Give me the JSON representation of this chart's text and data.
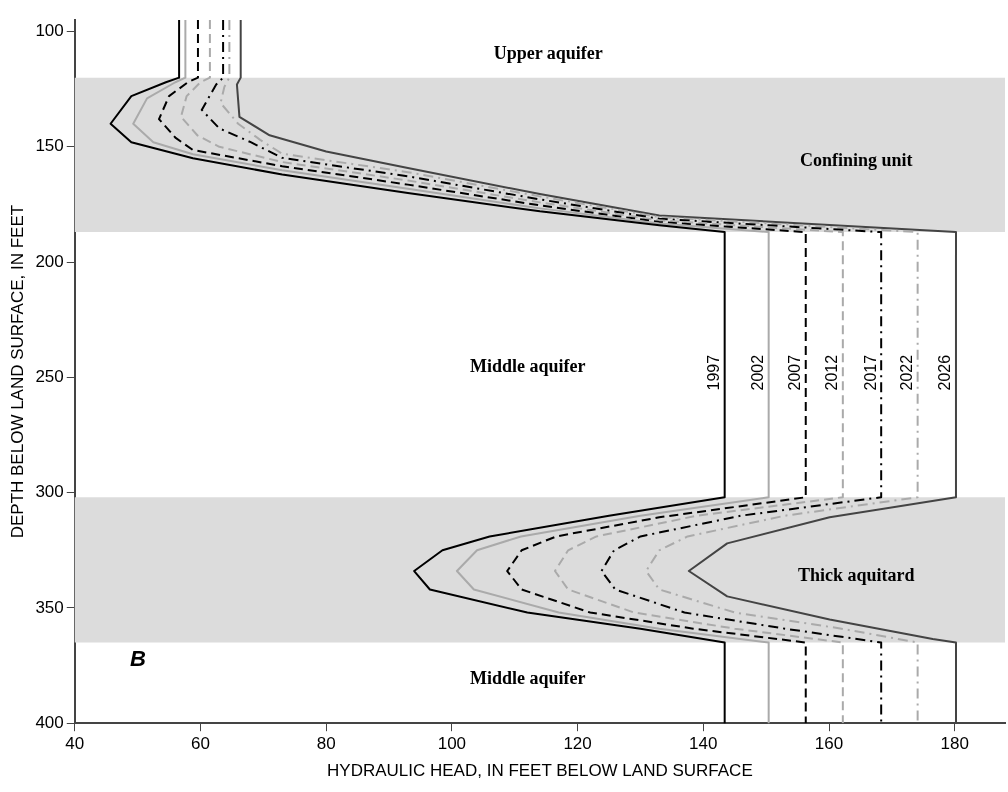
{
  "chart_data": {
    "type": "line",
    "xlabel": "HYDRAULIC HEAD, IN FEET BELOW LAND SURFACE",
    "ylabel": "DEPTH BELOW LAND SURFACE, IN FEET",
    "xlim": [
      40,
      188
    ],
    "xticks": [
      40,
      60,
      80,
      100,
      120,
      140,
      160,
      180
    ],
    "ylim": [
      400,
      95
    ],
    "yticks": [
      100,
      150,
      200,
      250,
      300,
      350,
      400
    ],
    "grid": false,
    "legend": false,
    "marker": "none",
    "bands": [
      {
        "axis": "y",
        "from": 120,
        "to": 187,
        "label": "Confining unit",
        "color": "#dcdcdc"
      },
      {
        "axis": "y",
        "from": 302,
        "to": 365,
        "label": "Thick aquitard",
        "color": "#dcdcdc"
      }
    ],
    "annotations": [
      "Upper aquifer",
      "Middle aquifer",
      "Middle aquifer",
      "B"
    ],
    "series": [
      {
        "name": "1997",
        "color": "#000000",
        "line_style": "solid",
        "x": [
          56.6,
          56.6,
          54.5,
          49,
          45.7,
          49,
          58.8,
          73,
          93,
          114,
          133,
          143.4,
          143.4,
          125,
          106,
          98.5,
          94,
          96.5,
          112,
          130,
          143.4,
          143.4
        ],
        "values": [
          95,
          120,
          122,
          128,
          140,
          148,
          155,
          162,
          170,
          178,
          184,
          187,
          302,
          310,
          319,
          325,
          334,
          342,
          352,
          359,
          365,
          400
        ]
      },
      {
        "name": "2002",
        "color": "#aaaaaa",
        "line_style": "solid",
        "x": [
          57.6,
          57.6,
          56,
          51.5,
          49.3,
          52.5,
          58.8,
          73,
          93,
          114,
          133,
          150.4,
          150.4,
          130,
          111,
          104,
          100.8,
          103.5,
          117,
          133,
          150.4,
          150.4
        ],
        "values": [
          95,
          120,
          122,
          129,
          140,
          148,
          153.2,
          160.2,
          168.2,
          176.7,
          183.3,
          187,
          302,
          310,
          319,
          325,
          334,
          342,
          352,
          359,
          365,
          400
        ]
      },
      {
        "name": "2007",
        "color": "#000000",
        "line_style": "dashed",
        "x": [
          59.6,
          59.6,
          58,
          55,
          53.4,
          56,
          58.8,
          73,
          93,
          114,
          133,
          156.3,
          156.3,
          133,
          116.6,
          111.1,
          108.8,
          111.1,
          122,
          138.4,
          156.3,
          156.3
        ],
        "values": [
          95,
          120,
          122,
          128,
          138,
          146,
          151.4,
          158.4,
          166.4,
          175.4,
          182.6,
          187,
          302,
          310.7,
          319,
          325,
          334,
          342,
          352,
          359,
          365,
          400
        ]
      },
      {
        "name": "2012",
        "color": "#aaaaaa",
        "line_style": "dashed",
        "x": [
          61.5,
          61.5,
          60,
          57.8,
          56.9,
          59.5,
          63,
          73,
          93,
          114,
          133,
          162.2,
          162.2,
          139,
          123,
          118.5,
          116.4,
          118.5,
          129,
          145,
          162.2,
          162.2
        ],
        "values": [
          95,
          120,
          122,
          128,
          137,
          145,
          150,
          156.6,
          164.6,
          174.1,
          181.9,
          187,
          302,
          310,
          319,
          325,
          334,
          342,
          352,
          359,
          365,
          400
        ]
      },
      {
        "name": "2017",
        "color": "#000000",
        "line_style": "dashdot",
        "x": [
          63.6,
          63.6,
          62.5,
          60.2,
          63,
          68,
          73,
          93,
          114,
          133,
          168.3,
          168.3,
          146,
          130,
          125.8,
          123.8,
          126,
          137,
          153,
          168.3,
          168.3
        ],
        "values": [
          95,
          120,
          123,
          134,
          142,
          148,
          154.8,
          162.8,
          172.8,
          181.2,
          187,
          302,
          310,
          319,
          325,
          334,
          342,
          352,
          359,
          365,
          400
        ]
      },
      {
        "name": "2022",
        "color": "#aaaaaa",
        "line_style": "dashdot",
        "x": [
          64.6,
          64.6,
          63.8,
          63.2,
          66,
          69.5,
          73,
          93,
          114,
          133,
          174.1,
          174.1,
          153,
          137.5,
          133,
          130.9,
          133,
          145,
          162,
          174.1,
          174.1
        ],
        "values": [
          95,
          120,
          124,
          131,
          140,
          147,
          153,
          161,
          171.5,
          180.5,
          187,
          302,
          310,
          319,
          325,
          334,
          342,
          352,
          359,
          365,
          400
        ]
      },
      {
        "name": "2026",
        "color": "#444444",
        "line_style": "solid",
        "x": [
          66.4,
          66.4,
          65.8,
          66.2,
          71,
          80,
          93,
          114,
          133,
          180.2,
          180.2,
          160.1,
          143.8,
          137.7,
          143.8,
          160.1,
          176.5,
          180.2,
          180.2
        ],
        "values": [
          95,
          120,
          123,
          137,
          145,
          152,
          159.2,
          170.5,
          179.8,
          187,
          302,
          310.7,
          322,
          334,
          345,
          355,
          363.5,
          365,
          400
        ]
      }
    ]
  }
}
